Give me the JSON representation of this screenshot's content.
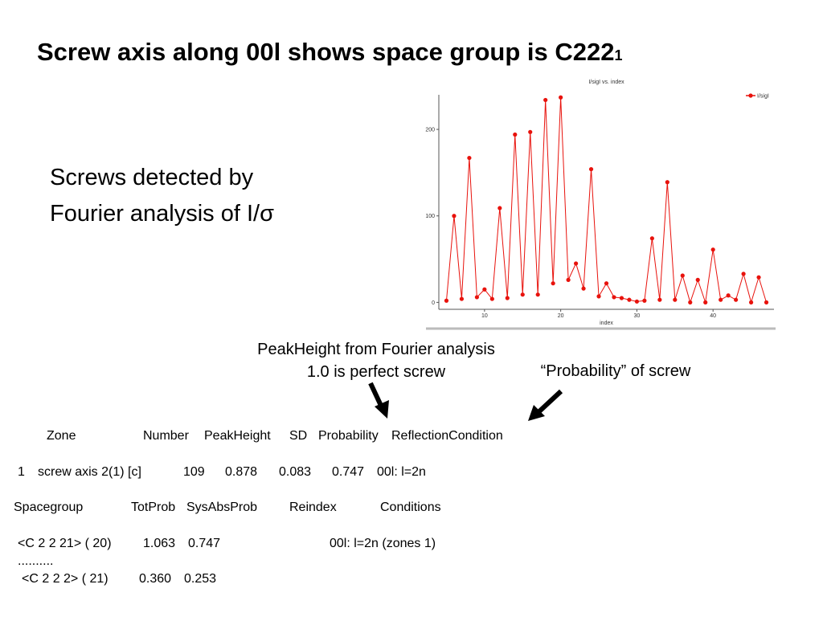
{
  "title": {
    "main": "Screw axis along 00l shows space group is C222",
    "subscript": "1"
  },
  "subtitle": [
    "Screws detected by",
    "Fourier analysis of I/σ"
  ],
  "annotations": {
    "peak": [
      "PeakHeight from Fourier analysis",
      "1.0 is perfect screw"
    ],
    "probability": "“Probability” of screw"
  },
  "chart_data": {
    "type": "line",
    "title": "I/sigI vs. index",
    "x_label": "index",
    "x": [
      5,
      6,
      7,
      8,
      9,
      10,
      11,
      12,
      13,
      14,
      15,
      16,
      17,
      18,
      19,
      20,
      21,
      22,
      23,
      24,
      25,
      26,
      27,
      28,
      29,
      30,
      31,
      32,
      33,
      34,
      35,
      36,
      37,
      38,
      39,
      40,
      41,
      42,
      43,
      44,
      45,
      46,
      47
    ],
    "series": [
      {
        "name": "I/sigI",
        "color": "#e8120c",
        "values": [
          2,
          100,
          4,
          167,
          6,
          15,
          4,
          109,
          5,
          194,
          9,
          197,
          9,
          234,
          22,
          237,
          26,
          45,
          16,
          154,
          7,
          22,
          6,
          5,
          3,
          1,
          2,
          74,
          3,
          139,
          3,
          31,
          0,
          26,
          0,
          61,
          3,
          8,
          3,
          33,
          0,
          29,
          0
        ]
      }
    ],
    "xlim": [
      4,
      48
    ],
    "xticks": [
      10,
      20,
      30,
      40
    ],
    "ylim": [
      -8,
      240
    ],
    "yticks": [
      0,
      100,
      200
    ],
    "legend": "top-right"
  },
  "table": {
    "header": [
      [
        "Zone",
        58
      ],
      [
        "Number",
        178
      ],
      [
        "PeakHeight",
        254
      ],
      [
        "SD",
        360
      ],
      [
        "Probability",
        396
      ],
      [
        "ReflectionCondition",
        487
      ]
    ],
    "rows": [
      [
        [
          "1",
          22
        ],
        [
          "screw axis 2(1) [c]",
          47
        ],
        [
          "109",
          228
        ],
        [
          "0.878",
          280
        ],
        [
          "0.083",
          347
        ],
        [
          "0.747",
          413
        ],
        [
          "00l: l=2n",
          469
        ]
      ],
      [
        [
          "Spacegroup",
          17
        ],
        [
          "TotProb",
          163
        ],
        [
          "SysAbsProb",
          232
        ],
        [
          "Reindex",
          360
        ],
        [
          "Conditions",
          473
        ]
      ],
      [
        [
          "<C 2 2 21> ( 20)",
          22
        ],
        [
          "1.063",
          178
        ],
        [
          "0.747",
          234
        ],
        [
          "00l: l=2n (zones 1)",
          410
        ]
      ],
      [
        [
          "..........",
          22
        ]
      ],
      [
        [
          "<C 2 2 2> ( 21)",
          27
        ],
        [
          "0.360",
          173
        ],
        [
          "0.253",
          229
        ]
      ]
    ]
  }
}
